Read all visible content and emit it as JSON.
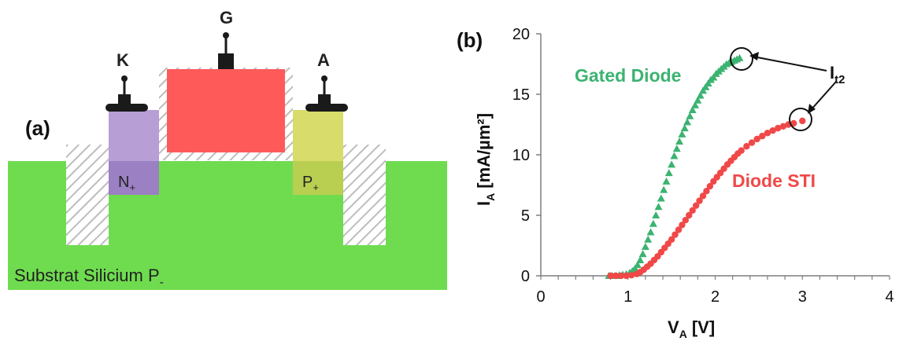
{
  "panel_a": {
    "label": "(a)",
    "terminals": {
      "kathode": "K",
      "gate": "G",
      "anode": "A"
    },
    "regions": {
      "n_plus": "N",
      "n_plus_sub": "+",
      "p_plus": "P",
      "p_plus_sub": "+"
    },
    "substrate": {
      "text": "Substrat Silicium P",
      "sub": "-"
    },
    "colors": {
      "substrate": "#6fdc4f",
      "gate": "#ff5a5a",
      "n_plus": "#b79fd6",
      "p_plus": "#d8dc6a",
      "contact": "#1a1a1a",
      "hatch": "#bdbdbd"
    }
  },
  "panel_b": {
    "label": "(b)",
    "chart_data": {
      "type": "scatter",
      "xlabel": "V",
      "xlabel_sub": "A",
      "xlabel_unit": "[V]",
      "ylabel": "I",
      "ylabel_sub": "A",
      "ylabel_unit": "[mA/µm²]",
      "xlim": [
        0,
        4
      ],
      "ylim": [
        0,
        20
      ],
      "xticks": [
        0,
        1,
        2,
        3,
        4
      ],
      "yticks": [
        0,
        5,
        10,
        15,
        20
      ],
      "series": [
        {
          "name": "Gated Diode",
          "color": "#3cb371",
          "marker": "triangle",
          "x": [
            0.78,
            0.82,
            0.86,
            0.9,
            0.94,
            0.98,
            1.02,
            1.05,
            1.08,
            1.11,
            1.14,
            1.17,
            1.2,
            1.23,
            1.26,
            1.29,
            1.32,
            1.35,
            1.38,
            1.41,
            1.44,
            1.47,
            1.5,
            1.53,
            1.56,
            1.59,
            1.62,
            1.65,
            1.68,
            1.71,
            1.74,
            1.77,
            1.8,
            1.83,
            1.86,
            1.89,
            1.92,
            1.95,
            1.98,
            2.01,
            2.04,
            2.07,
            2.1,
            2.13,
            2.16,
            2.19,
            2.22,
            2.25,
            2.28
          ],
          "y": [
            0.0,
            0.0,
            0.0,
            0.05,
            0.1,
            0.15,
            0.25,
            0.4,
            0.6,
            0.9,
            1.3,
            1.8,
            2.4,
            3.0,
            3.6,
            4.3,
            5.0,
            5.7,
            6.4,
            7.1,
            7.8,
            8.5,
            9.2,
            9.9,
            10.5,
            11.1,
            11.7,
            12.2,
            12.7,
            13.2,
            13.7,
            14.1,
            14.5,
            14.9,
            15.3,
            15.6,
            15.9,
            16.2,
            16.4,
            16.7,
            16.9,
            17.1,
            17.3,
            17.5,
            17.6,
            17.7,
            17.8,
            17.9,
            18.0
          ]
        },
        {
          "name": "Diode STI",
          "color": "#f04848",
          "marker": "circle",
          "x": [
            0.8,
            0.86,
            0.92,
            0.98,
            1.04,
            1.1,
            1.14,
            1.18,
            1.22,
            1.26,
            1.3,
            1.34,
            1.38,
            1.42,
            1.46,
            1.5,
            1.54,
            1.58,
            1.62,
            1.66,
            1.7,
            1.74,
            1.78,
            1.82,
            1.86,
            1.9,
            1.94,
            1.98,
            2.02,
            2.06,
            2.1,
            2.14,
            2.18,
            2.22,
            2.26,
            2.3,
            2.36,
            2.42,
            2.48,
            2.54,
            2.6,
            2.66,
            2.72,
            2.78,
            2.84,
            2.9,
            3.0
          ],
          "y": [
            0.0,
            0.0,
            0.0,
            0.0,
            0.05,
            0.15,
            0.3,
            0.5,
            0.75,
            1.0,
            1.3,
            1.6,
            1.95,
            2.3,
            2.65,
            3.0,
            3.4,
            3.8,
            4.2,
            4.6,
            5.0,
            5.4,
            5.8,
            6.2,
            6.6,
            7.0,
            7.4,
            7.8,
            8.15,
            8.5,
            8.85,
            9.2,
            9.5,
            9.8,
            10.1,
            10.35,
            10.7,
            11.0,
            11.3,
            11.55,
            11.8,
            12.0,
            12.2,
            12.35,
            12.5,
            12.6,
            12.8
          ]
        }
      ],
      "annotations": {
        "gated": "Gated Diode",
        "sti": "Diode STI",
        "it2": "I",
        "it2_sub": "t2"
      }
    }
  }
}
